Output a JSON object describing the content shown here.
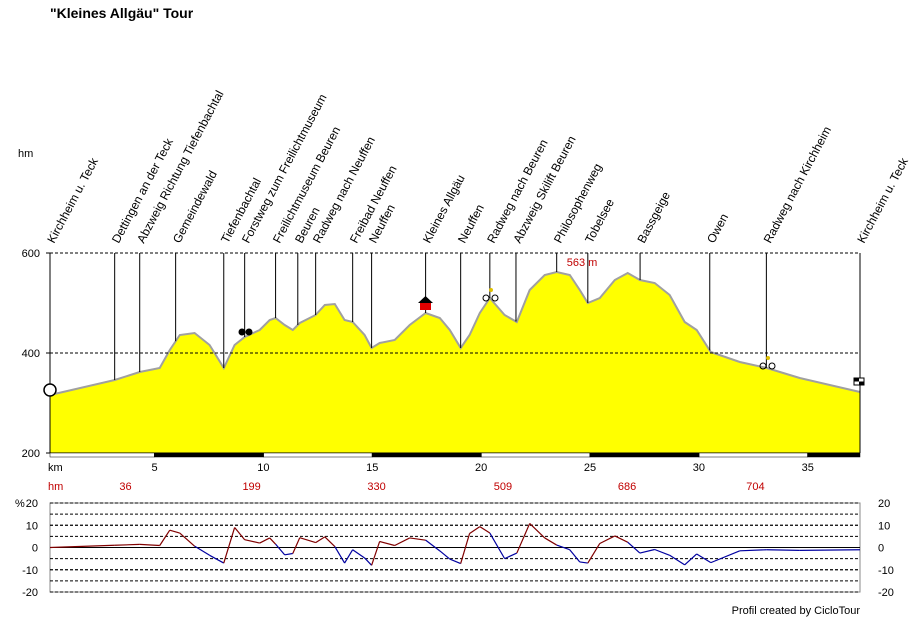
{
  "title": "\"Kleines Allgäu\" Tour",
  "footer": "Profil created by CicloTour",
  "chart_data": [
    {
      "type": "area",
      "ylabel": "hm",
      "xlabel": "km",
      "x": [
        0.2,
        3.17,
        4.32,
        5.24,
        5.7,
        6.16,
        6.84,
        7.53,
        8.18,
        8.68,
        9.14,
        9.83,
        10.29,
        10.56,
        10.98,
        11.35,
        11.67,
        12.4,
        12.82,
        13.28,
        13.73,
        14.1,
        14.65,
        14.97,
        15.34,
        16.03,
        16.72,
        17.45,
        18.1,
        18.56,
        19.06,
        19.47,
        19.94,
        20.4,
        21.08,
        21.64,
        22.23,
        22.92,
        23.47,
        24.07,
        24.53,
        24.9,
        25.45,
        26.14,
        26.73,
        27.29,
        27.97,
        28.66,
        29.35,
        29.9,
        30.55,
        31.88,
        33.12,
        34.63,
        37.4
      ],
      "values": [
        316,
        346,
        362,
        370,
        406,
        436,
        440,
        416,
        370,
        416,
        432,
        446,
        466,
        470,
        456,
        446,
        460,
        476,
        496,
        498,
        466,
        462,
        436,
        410,
        420,
        426,
        456,
        480,
        470,
        446,
        410,
        436,
        480,
        510,
        476,
        462,
        526,
        556,
        562,
        556,
        526,
        500,
        510,
        546,
        560,
        546,
        540,
        516,
        462,
        446,
        402,
        382,
        370,
        350,
        322
      ],
      "color": "#ffff00",
      "line_color": "#a0a0a0",
      "xlim": [
        0.2,
        37.4
      ],
      "xticks": [
        5,
        10,
        15,
        20,
        25,
        30,
        35
      ],
      "ylim": [
        200,
        600
      ],
      "yticks": [
        200,
        400,
        600
      ],
      "grid": true,
      "annotation": "563 m",
      "waypoints": {
        "names": [
          "Kirchheim u. Teck",
          "Dettingen an der Teck",
          "Abzweig Richtung Tiefenbachtal",
          "Gemeindewald",
          "Tiefenbachtal",
          "Forstweg zum Freilichtmuseum",
          "Freilichtmuseum Beuren",
          "Beuren",
          "Radweg nach Neuffen",
          "Freibad Neuffen",
          "Neuffen",
          "Kleines Allgäu",
          "Neuffen",
          "Radweg nach Beuren",
          "Abzweig Skilift Beuren",
          "Philosophenweg",
          "Tobelsee",
          "Bassgeige",
          "Owen",
          "Radweg nach Kirchheim",
          "Kirchheim u. Teck"
        ],
        "x": [
          0.2,
          3.17,
          4.32,
          5.97,
          8.18,
          9.14,
          10.56,
          11.58,
          12.4,
          14.1,
          14.97,
          17.45,
          19.06,
          20.4,
          21.6,
          23.47,
          24.9,
          27.3,
          30.5,
          33.1,
          37.4
        ]
      },
      "climb": {
        "x": [
          3.67,
          9.46,
          15.2,
          21.0,
          26.7,
          32.6
        ],
        "values": [
          36,
          199,
          330,
          509,
          686,
          704
        ]
      }
    },
    {
      "type": "line",
      "ylabel": "%",
      "x": [
        0.2,
        3.17,
        4.32,
        5.24,
        5.7,
        6.16,
        6.84,
        7.53,
        8.18,
        8.68,
        9.14,
        9.83,
        10.29,
        10.56,
        10.98,
        11.35,
        11.67,
        12.4,
        12.82,
        13.28,
        13.73,
        14.1,
        14.65,
        14.97,
        15.34,
        16.03,
        16.72,
        17.45,
        18.1,
        18.56,
        19.06,
        19.47,
        19.94,
        20.4,
        21.08,
        21.64,
        22.23,
        22.92,
        23.47,
        24.07,
        24.53,
        24.9,
        25.45,
        26.14,
        26.73,
        27.29,
        27.97,
        28.66,
        29.35,
        29.9,
        30.55,
        31.88,
        33.12,
        34.63,
        37.4
      ],
      "values": [
        0,
        1,
        1.4,
        0.9,
        7.8,
        6.5,
        0.6,
        -3.5,
        -7,
        9,
        3.5,
        2,
        4.3,
        1.5,
        -3.3,
        -2.7,
        4.4,
        2.2,
        4.8,
        0.4,
        -7,
        -1,
        -4.7,
        -8,
        2.7,
        0.9,
        4.3,
        3.3,
        -1.5,
        -5.2,
        -7.2,
        6.3,
        9.4,
        6.5,
        -5,
        -2.5,
        10.8,
        4.3,
        1.1,
        -1,
        -6.5,
        -7,
        1.8,
        5.2,
        2.4,
        -2.5,
        -0.9,
        -3.5,
        -7.8,
        -2.9,
        -6.8,
        -1.5,
        -1,
        -1.3,
        -1
      ],
      "color_up": "#800000",
      "color_down": "#0000a0",
      "xlim": [
        0.2,
        37.4
      ],
      "ylim": [
        -20,
        20
      ],
      "yticks": [
        -20,
        -10,
        0,
        10,
        20
      ],
      "gridlines": [
        -15,
        -10,
        -5,
        5,
        10,
        15
      ]
    }
  ]
}
